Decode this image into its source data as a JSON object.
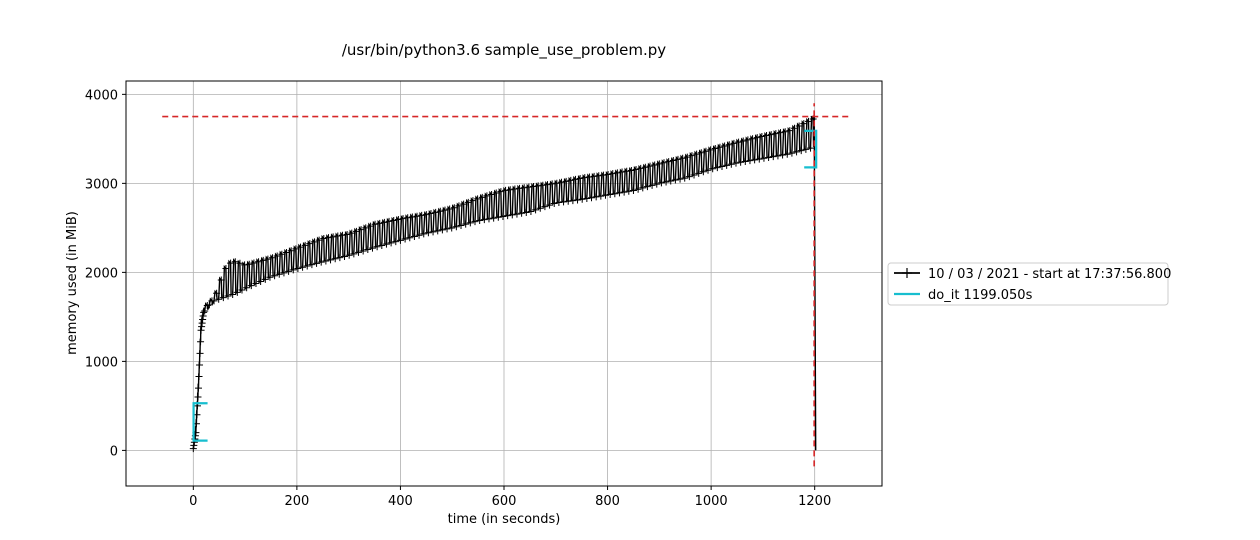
{
  "chart_data": {
    "type": "line",
    "title": "/usr/bin/python3.6 sample_use_problem.py",
    "xlabel": "time (in seconds)",
    "ylabel": "memory used (in MiB)",
    "xlim": [
      -130,
      1330
    ],
    "ylim": [
      -400,
      4150
    ],
    "x_ticks": [
      0,
      200,
      400,
      600,
      800,
      1000,
      1200
    ],
    "y_ticks": [
      0,
      1000,
      2000,
      3000,
      4000
    ],
    "grid": true,
    "legend_position": "right",
    "colors": {
      "memory": "#000000",
      "function": "#17becf",
      "max_marker": "#d62728",
      "grid": "#b0b0b0"
    },
    "series": [
      {
        "name": "10 / 03 / 2021 - start at 17:37:56.800",
        "style": "line-plus-markers",
        "low_envelope": [
          [
            0,
            20
          ],
          [
            5,
            200
          ],
          [
            10,
            700
          ],
          [
            15,
            1350
          ],
          [
            20,
            1550
          ],
          [
            30,
            1630
          ],
          [
            40,
            1680
          ],
          [
            60,
            1720
          ],
          [
            80,
            1760
          ],
          [
            100,
            1820
          ],
          [
            150,
            1950
          ],
          [
            200,
            2040
          ],
          [
            250,
            2120
          ],
          [
            300,
            2190
          ],
          [
            350,
            2280
          ],
          [
            400,
            2360
          ],
          [
            450,
            2440
          ],
          [
            500,
            2500
          ],
          [
            550,
            2580
          ],
          [
            600,
            2630
          ],
          [
            650,
            2680
          ],
          [
            700,
            2780
          ],
          [
            750,
            2820
          ],
          [
            800,
            2870
          ],
          [
            850,
            2920
          ],
          [
            900,
            3000
          ],
          [
            950,
            3060
          ],
          [
            1000,
            3160
          ],
          [
            1050,
            3230
          ],
          [
            1100,
            3280
          ],
          [
            1150,
            3330
          ],
          [
            1195,
            3400
          ],
          [
            1199,
            3420
          ]
        ],
        "high_envelope": [
          [
            0,
            20
          ],
          [
            5,
            300
          ],
          [
            10,
            800
          ],
          [
            15,
            1450
          ],
          [
            20,
            1600
          ],
          [
            30,
            1680
          ],
          [
            40,
            1720
          ],
          [
            60,
            2050
          ],
          [
            75,
            2150
          ],
          [
            100,
            2100
          ],
          [
            150,
            2180
          ],
          [
            200,
            2290
          ],
          [
            250,
            2400
          ],
          [
            300,
            2450
          ],
          [
            350,
            2560
          ],
          [
            400,
            2620
          ],
          [
            450,
            2670
          ],
          [
            500,
            2740
          ],
          [
            550,
            2850
          ],
          [
            600,
            2940
          ],
          [
            650,
            2980
          ],
          [
            700,
            3020
          ],
          [
            750,
            3080
          ],
          [
            800,
            3120
          ],
          [
            850,
            3170
          ],
          [
            900,
            3240
          ],
          [
            950,
            3310
          ],
          [
            1000,
            3400
          ],
          [
            1050,
            3480
          ],
          [
            1100,
            3550
          ],
          [
            1150,
            3610
          ],
          [
            1195,
            3740
          ],
          [
            1199,
            3750
          ]
        ],
        "final_drop": [
          [
            1199,
            3750
          ],
          [
            1202,
            0
          ]
        ]
      },
      {
        "name": "do_it 1199.050s",
        "style": "bracket",
        "start_time": 0.5,
        "end_time": 1199.05,
        "mem_low": 110,
        "mem_high": 3590
      }
    ],
    "max_memory_line": {
      "y": 3750,
      "x_start": -60,
      "x_end": 1265
    },
    "max_time_line": {
      "x": 1199,
      "y_start": -180,
      "y_end": 3900
    }
  }
}
